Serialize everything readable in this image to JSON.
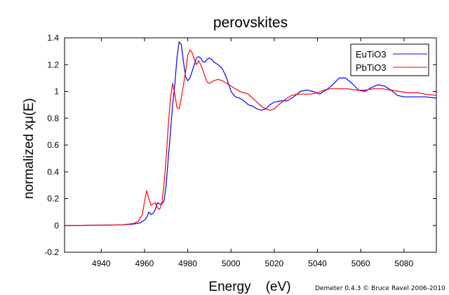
{
  "chart_data": {
    "type": "line",
    "title": "perovskites",
    "xlabel": "Energy    (eV)",
    "ylabel": "normalized xμ(E)",
    "credit": "Demeter 0.4.3 © Bruce Ravel 2006-2010",
    "xlim": [
      4923,
      5095
    ],
    "ylim": [
      -0.2,
      1.4
    ],
    "xticks": [
      4940,
      4960,
      4980,
      5000,
      5020,
      5040,
      5060,
      5080
    ],
    "yticks": [
      -0.2,
      0,
      0.2,
      0.4,
      0.6,
      0.8,
      1,
      1.2,
      1.4
    ],
    "ytick_labels": [
      "-0.2",
      "0",
      "0.2",
      "0.4",
      "0.6",
      "0.8",
      "1",
      "1.2",
      "1.4"
    ],
    "grid": false,
    "legend_position": "top-right",
    "series": [
      {
        "name": "EuTiO3",
        "color": "#0000ff",
        "x": [
          4923,
          4940,
          4950,
          4955,
          4958,
          4960,
          4961,
          4962,
          4963,
          4964,
          4965,
          4966,
          4967,
          4968,
          4969,
          4970,
          4971,
          4972,
          4973,
          4974,
          4975,
          4976,
          4977,
          4978,
          4979,
          4980,
          4981,
          4982,
          4983,
          4984,
          4985,
          4986,
          4987,
          4988,
          4989,
          4990,
          4991,
          4992,
          4994,
          4996,
          4998,
          5000,
          5002,
          5004,
          5006,
          5008,
          5010,
          5012,
          5014,
          5016,
          5018,
          5020,
          5023,
          5026,
          5029,
          5032,
          5035,
          5038,
          5041,
          5044,
          5047,
          5050,
          5053,
          5056,
          5059,
          5062,
          5065,
          5068,
          5071,
          5074,
          5077,
          5080,
          5083,
          5086,
          5090,
          5095
        ],
        "y": [
          0.0,
          0.002,
          0.005,
          0.01,
          0.02,
          0.04,
          0.06,
          0.1,
          0.08,
          0.09,
          0.12,
          0.17,
          0.16,
          0.16,
          0.18,
          0.3,
          0.5,
          0.7,
          0.9,
          1.05,
          1.25,
          1.37,
          1.35,
          1.22,
          1.11,
          1.08,
          1.1,
          1.15,
          1.2,
          1.25,
          1.26,
          1.25,
          1.22,
          1.22,
          1.24,
          1.25,
          1.24,
          1.22,
          1.2,
          1.17,
          1.1,
          1.0,
          0.96,
          0.95,
          0.93,
          0.9,
          0.89,
          0.87,
          0.86,
          0.87,
          0.9,
          0.92,
          0.93,
          0.93,
          0.96,
          1.0,
          1.01,
          1.0,
          0.98,
          1.01,
          1.05,
          1.1,
          1.1,
          1.06,
          1.01,
          1.0,
          1.03,
          1.05,
          1.04,
          1.01,
          0.97,
          0.96,
          0.96,
          0.96,
          0.96,
          0.95
        ]
      },
      {
        "name": "PbTiO3",
        "color": "#ff0000",
        "x": [
          4923,
          4940,
          4950,
          4955,
          4957,
          4959,
          4960,
          4961,
          4962,
          4963,
          4964,
          4965,
          4966,
          4967,
          4968,
          4969,
          4970,
          4971,
          4972,
          4973,
          4974,
          4975,
          4976,
          4977,
          4978,
          4979,
          4980,
          4981,
          4982,
          4983,
          4984,
          4985,
          4986,
          4987,
          4988,
          4989,
          4990,
          4991,
          4992,
          4994,
          4996,
          4998,
          5000,
          5002,
          5004,
          5006,
          5008,
          5010,
          5012,
          5014,
          5016,
          5018,
          5020,
          5022,
          5025,
          5028,
          5031,
          5034,
          5037,
          5040,
          5043,
          5046,
          5050,
          5054,
          5058,
          5062,
          5066,
          5070,
          5074,
          5078,
          5082,
          5086,
          5090,
          5095
        ],
        "y": [
          0.0,
          0.002,
          0.005,
          0.015,
          0.03,
          0.08,
          0.18,
          0.26,
          0.2,
          0.15,
          0.16,
          0.17,
          0.13,
          0.12,
          0.17,
          0.3,
          0.5,
          0.75,
          0.95,
          1.06,
          0.98,
          0.88,
          0.87,
          0.95,
          1.05,
          1.15,
          1.27,
          1.31,
          1.29,
          1.24,
          1.2,
          1.23,
          1.2,
          1.16,
          1.11,
          1.07,
          1.06,
          1.07,
          1.08,
          1.09,
          1.08,
          1.06,
          1.04,
          1.02,
          1.0,
          0.99,
          0.98,
          0.95,
          0.92,
          0.89,
          0.87,
          0.86,
          0.87,
          0.9,
          0.94,
          0.97,
          0.98,
          0.98,
          0.98,
          0.99,
          1.01,
          1.02,
          1.02,
          1.02,
          1.01,
          1.01,
          1.02,
          1.02,
          1.01,
          1.0,
          0.99,
          0.99,
          0.98,
          0.97
        ]
      }
    ]
  }
}
